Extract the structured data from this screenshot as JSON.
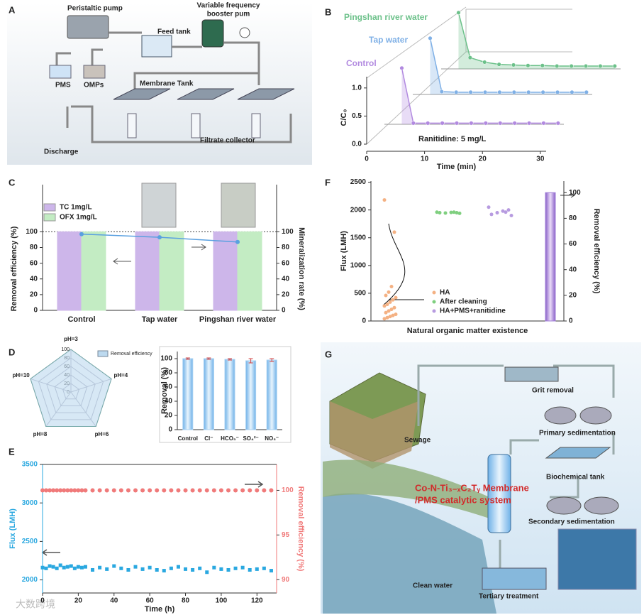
{
  "diagram_a": {
    "panel": "A",
    "labels": [
      "Peristaltic pump",
      "Feed tank",
      "Variable frequency",
      "booster pum",
      "PMS",
      "OMPs",
      "Membrane Tank",
      "Discharge",
      "Filtrate collector"
    ]
  },
  "chart_data": [
    {
      "type": "line",
      "panel": "B",
      "annotation": "Ranitidine: 5 mg/L",
      "x_label": "Time (min)",
      "y_label": "C/C₀",
      "xlim": [
        0,
        31
      ],
      "xticks": [
        0,
        10,
        20,
        30
      ],
      "ylim": [
        0,
        1.2
      ],
      "yticks": [
        {
          "value": 0,
          "label": "0.0"
        },
        {
          "value": 0.5,
          "label": "0.5"
        },
        {
          "value": 1,
          "label": "1.0"
        }
      ],
      "x": [
        3,
        5,
        7.5,
        10,
        12.5,
        15,
        17.5,
        20,
        22.5,
        25,
        27.5,
        30
      ],
      "series": [
        {
          "name": "Control",
          "color": "#b28ae0",
          "values": [
            1.0,
            0.02,
            0.02,
            0.02,
            0.02,
            0.02,
            0.02,
            0.02,
            0.02,
            0.02,
            0.02,
            0.02
          ]
        },
        {
          "name": "Tap water",
          "color": "#7fb0e6",
          "values": [
            1.0,
            0.05,
            0.04,
            0.04,
            0.04,
            0.04,
            0.04,
            0.04,
            0.04,
            0.04,
            0.04,
            0.04
          ]
        },
        {
          "name": "Pingshan river water",
          "color": "#6cc18a",
          "values": [
            1.0,
            0.2,
            0.12,
            0.08,
            0.07,
            0.06,
            0.06,
            0.05,
            0.05,
            0.05,
            0.05,
            0.05
          ]
        }
      ]
    },
    {
      "type": "bar",
      "panel": "C",
      "categories": [
        "Control",
        "Tap water",
        "Pingshan river water"
      ],
      "y_label": "Removal efficiency (%)",
      "y2_label": "Mineralization rate (%)",
      "ylim": [
        0,
        160
      ],
      "yticks": [
        0,
        20,
        40,
        60,
        80,
        100
      ],
      "y2lim": [
        0,
        160
      ],
      "y2ticks": [
        0,
        20,
        40,
        60,
        80,
        100
      ],
      "hline": 100,
      "series": [
        {
          "name": "TC   1mg/L",
          "color": "#cdb6ea",
          "values": [
            100,
            100,
            100
          ]
        },
        {
          "name": "OFX 1mg/L",
          "color": "#c3ecc3",
          "values": [
            100,
            100,
            100
          ]
        },
        {
          "kind": "line",
          "axis": "y2",
          "color": "#5aa0e0",
          "values": [
            97,
            93,
            87
          ]
        }
      ]
    },
    {
      "type": "strip",
      "panel": "F",
      "x_label": "Natural organic matter existence",
      "y_label": "Flux (LMH)",
      "y2_label": "Removal efficiency (%)",
      "ylim": [
        0,
        2520
      ],
      "yticks": [
        0,
        500,
        1000,
        1500,
        2000,
        2500
      ],
      "y2lim": [
        0,
        109
      ],
      "y2ticks": [
        0,
        20,
        40,
        60,
        80,
        100
      ],
      "series": [
        {
          "name": "HA",
          "color": "#f4b183",
          "values": [
            2180,
            1600,
            620,
            520,
            460,
            420,
            380,
            340,
            300,
            270,
            240,
            210,
            180,
            150,
            120,
            100,
            80,
            60,
            40
          ]
        },
        {
          "name": "After cleaning",
          "color": "#7fcf7f",
          "values": [
            1960,
            1950,
            1955,
            1945,
            1950,
            1940,
            1960
          ]
        },
        {
          "name": "HA+PMS+ranitidine",
          "color": "#b79be0",
          "values": [
            2050,
            2000,
            1980,
            1950,
            1920,
            1900,
            1960
          ]
        }
      ],
      "removal": {
        "color": "#a27fd8",
        "value": 100
      }
    },
    {
      "type": "radar",
      "panel": "D",
      "categories": [
        "pH=3",
        "pH=4",
        "pH=6",
        "pH=8",
        "pH=10"
      ],
      "lim": [
        0,
        100
      ],
      "ticks": [
        0,
        20,
        40,
        60,
        80,
        100
      ],
      "series": [
        {
          "name": "Removal efficiency",
          "color": "#bcd9ef",
          "values": [
            100,
            100,
            100,
            100,
            100
          ]
        }
      ]
    },
    {
      "type": "bar",
      "categories": [
        "Control",
        "Cl⁻",
        "HCO₃⁻",
        "SO₄²⁻",
        "NO₃⁻"
      ],
      "y_label": "Removal (%)",
      "ylim": [
        0,
        110
      ],
      "yticks": [
        0,
        20,
        40,
        60,
        80,
        100
      ],
      "series": [
        {
          "color": "#a8d1f2",
          "values": [
            100,
            100,
            99,
            97,
            98
          ],
          "errors": [
            1,
            1,
            1,
            3,
            2
          ]
        }
      ]
    },
    {
      "type": "scatter",
      "panel": "E",
      "x_label": "Time (h)",
      "y_label": "Flux (LMH)",
      "y2_label": "Removal efficiency (%)",
      "xlim": [
        0,
        131
      ],
      "xticks": [
        0,
        20,
        40,
        60,
        80,
        100,
        120
      ],
      "ylim": [
        1830,
        3500
      ],
      "yticks": [
        2000,
        2500,
        3000,
        3500
      ],
      "y2lim": [
        88.5,
        102.9
      ],
      "y2ticks": [
        90,
        95,
        100
      ],
      "x": [
        0,
        2,
        4,
        6,
        8,
        10,
        12,
        14,
        16,
        18,
        20,
        22,
        24,
        28,
        32,
        36,
        40,
        44,
        48,
        52,
        56,
        60,
        64,
        68,
        72,
        76,
        80,
        84,
        88,
        92,
        96,
        100,
        104,
        108,
        112,
        116,
        120,
        124,
        128
      ],
      "series": [
        {
          "color": "#2aa8e0",
          "marker": "square",
          "values": [
            2160,
            2150,
            2180,
            2170,
            2150,
            2190,
            2160,
            2170,
            2180,
            2150,
            2170,
            2160,
            2170,
            2130,
            2160,
            2140,
            2180,
            2150,
            2130,
            2170,
            2140,
            2160,
            2130,
            2120,
            2150,
            2170,
            2140,
            2130,
            2150,
            2100,
            2160,
            2140,
            2130,
            2150,
            2160,
            2130,
            2140,
            2150,
            2120
          ]
        },
        {
          "color": "#f07a7a",
          "marker": "circle",
          "axis": "y2",
          "values": [
            100,
            100,
            100,
            100,
            100,
            100,
            100,
            100,
            100,
            100,
            100,
            100,
            100,
            100,
            100,
            100,
            100,
            100,
            100,
            100,
            100,
            100,
            100,
            100,
            100,
            100,
            100,
            100,
            100,
            100,
            100,
            100,
            100,
            100,
            100,
            100,
            100,
            100,
            100
          ]
        }
      ]
    }
  ],
  "diagram_g": {
    "panel": "G",
    "labels": [
      "Grit removal",
      "Primary sedimentation",
      "Sewage",
      "Biochemical tank",
      "Secondary sedimentation",
      "Clean water",
      "Tertiary treatment"
    ],
    "system_label": [
      "Co-N-Ti₃₋ₓC₂Tᵧ  Membrane",
      "/PMS catalytic system"
    ]
  },
  "watermark": "大数跨境"
}
